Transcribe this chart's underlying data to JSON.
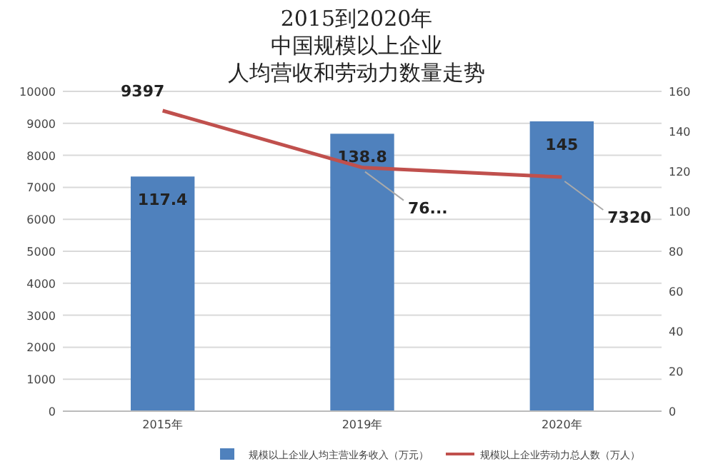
{
  "chart_data": {
    "type": "bar",
    "title": "2015到2020年",
    "subtitle": "中国规模以上企业",
    "annotations": [
      "人均营收和劳动力数量走势"
    ],
    "categories": [
      "2015年",
      "2019年",
      "2020年"
    ],
    "series": [
      {
        "type": "bar",
        "name": "规模以上企业人均主营业务收入（万元）",
        "color": "#4f81bd",
        "axis": "y2",
        "values": [
          117.4,
          138.8,
          145
        ]
      },
      {
        "type": "line",
        "name": "规模以上企业劳动力总人数（万人）",
        "color": "#c0504d",
        "axis": "y",
        "values": [
          9397,
          7620,
          7320
        ],
        "value_labels": [
          "9397",
          "76...",
          "7320"
        ]
      }
    ],
    "ylim": [
      0,
      10000
    ],
    "yticks": [
      0,
      1000,
      2000,
      3000,
      4000,
      5000,
      6000,
      7000,
      8000,
      9000,
      10000
    ],
    "y2lim": [
      0,
      160
    ],
    "y2ticks": [
      0,
      20,
      40,
      60,
      80,
      100,
      120,
      140,
      160
    ],
    "grid": "y",
    "legend": "bottom",
    "data_labels": true,
    "marker": "none"
  }
}
